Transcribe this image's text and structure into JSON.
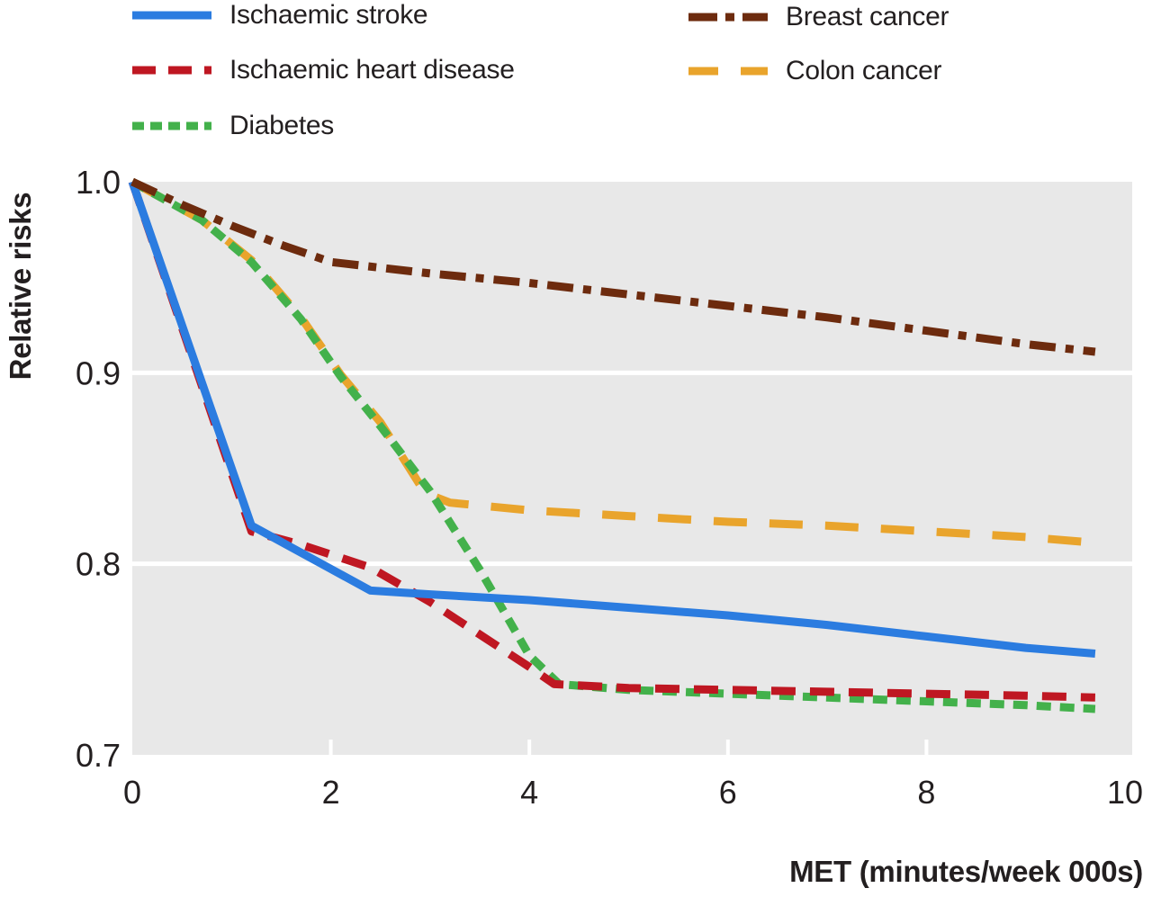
{
  "axes": {
    "y_title": "Relative risks",
    "x_title": "MET (minutes/week 000s)"
  },
  "chart_data": {
    "type": "line",
    "title": "",
    "xlabel": "MET (minutes/week 000s)",
    "ylabel": "Relative risks",
    "xlim": [
      0,
      10
    ],
    "ylim": [
      0.7,
      1.0
    ],
    "xticks": [
      0,
      2,
      4,
      6,
      8,
      10
    ],
    "yticks": [
      1.0,
      0.9,
      0.8,
      0.7
    ],
    "ytick_labels": [
      "1.0",
      "0.9",
      "0.8",
      "0.7"
    ],
    "grid": "horizontal white gridlines at 0.9 and 0.8 on light-grey plot background",
    "legend_position": "top, two columns",
    "plot_bg_color": "#e8e8e8",
    "gridline_color": "#ffffff",
    "draw_order": [
      4,
      2,
      1,
      0,
      3
    ],
    "series": [
      {
        "name": "Ischaemic stroke",
        "id": "ischaemic-stroke",
        "color": "#2b7ce0",
        "line_style": "solid",
        "dash": "",
        "legend_dash": "",
        "x": [
          0,
          1.2,
          2.4,
          3,
          4,
          5,
          6,
          7,
          8,
          9,
          9.7
        ],
        "y": [
          1.0,
          0.82,
          0.786,
          0.784,
          0.781,
          0.777,
          0.773,
          0.768,
          0.762,
          0.756,
          0.753
        ]
      },
      {
        "name": "Ischaemic heart disease",
        "id": "ischaemic-heart-disease",
        "color": "#bf1722",
        "line_style": "dashed",
        "dash": "27 16",
        "legend_dash": "26 14",
        "x": [
          0,
          1.2,
          1.7,
          2.4,
          3,
          3.5,
          4,
          4.25,
          5,
          6,
          7,
          8,
          9,
          9.7
        ],
        "y": [
          1.0,
          0.817,
          0.81,
          0.798,
          0.78,
          0.763,
          0.746,
          0.737,
          0.735,
          0.734,
          0.733,
          0.732,
          0.731,
          0.73
        ]
      },
      {
        "name": "Diabetes",
        "id": "diabetes",
        "color": "#43b14b",
        "line_style": "short-dashed",
        "dash": "16 10",
        "legend_dash": "13 7",
        "x": [
          0,
          0.7,
          1.2,
          1.7,
          2.1,
          2.5,
          3,
          3.5,
          4,
          4.3,
          5,
          6,
          7,
          8,
          9,
          9.7
        ],
        "y": [
          1.0,
          0.98,
          0.958,
          0.928,
          0.898,
          0.872,
          0.838,
          0.797,
          0.752,
          0.737,
          0.734,
          0.732,
          0.73,
          0.728,
          0.726,
          0.724
        ]
      },
      {
        "name": "Breast cancer",
        "id": "breast-cancer",
        "color": "#6d2b0e",
        "line_style": "dash-dot",
        "dash": "29 11 9 11",
        "legend_dash": "32 9 10 9",
        "x": [
          0,
          0.5,
          1,
          1.5,
          2,
          2.5,
          3,
          4,
          5,
          6,
          7,
          8,
          9,
          9.7
        ],
        "y": [
          1.0,
          0.988,
          0.977,
          0.967,
          0.958,
          0.955,
          0.952,
          0.947,
          0.941,
          0.935,
          0.929,
          0.922,
          0.915,
          0.911
        ]
      },
      {
        "name": "Colon cancer",
        "id": "colon-cancer",
        "color": "#e9a42c",
        "line_style": "long-dashed",
        "dash": "37 25",
        "legend_dash": "33 25",
        "x": [
          0,
          0.7,
          1.2,
          1.7,
          2.1,
          2.5,
          2.95,
          3.2,
          4,
          5,
          6,
          7,
          8,
          9,
          9.7
        ],
        "y": [
          1.0,
          0.98,
          0.959,
          0.929,
          0.899,
          0.874,
          0.837,
          0.832,
          0.828,
          0.825,
          0.822,
          0.82,
          0.817,
          0.814,
          0.811
        ]
      }
    ]
  }
}
